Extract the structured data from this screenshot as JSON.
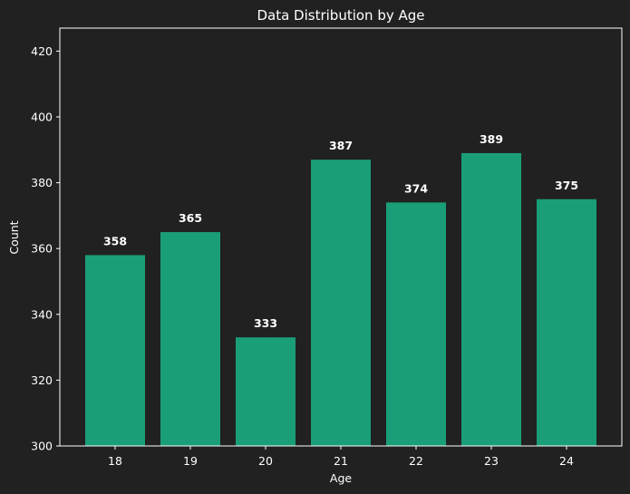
{
  "chart_data": {
    "type": "bar",
    "title": "Data Distribution by Age",
    "xlabel": "Age",
    "ylabel": "Count",
    "categories": [
      "18",
      "19",
      "20",
      "21",
      "22",
      "23",
      "24"
    ],
    "values": [
      358,
      365,
      333,
      387,
      374,
      389,
      375
    ],
    "ylim": [
      300,
      427
    ],
    "yticks": [
      300,
      320,
      340,
      360,
      380,
      400,
      420
    ],
    "grid": false,
    "show_data_labels": true,
    "colors": {
      "background": "#212121",
      "bar": "#1a9e78",
      "text": "#ffffff",
      "axis": "#ffffff"
    }
  }
}
